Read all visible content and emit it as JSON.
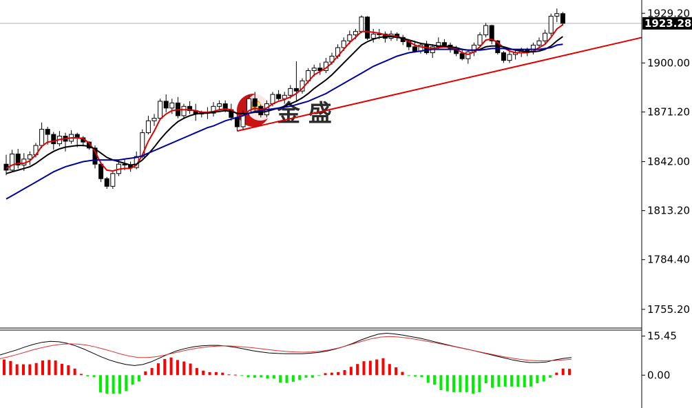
{
  "chart_data": [
    {
      "type": "candlestick",
      "y_ticks": [
        "1929.20",
        "1900.00",
        "1871.20",
        "1842.00",
        "1813.20",
        "1784.40",
        "1755.20"
      ],
      "y_tick_values": [
        1929.2,
        1900.0,
        1871.2,
        1842.0,
        1813.2,
        1784.4,
        1755.2
      ],
      "ylim": [
        1745,
        1937
      ],
      "current_price": "1923.28",
      "current_price_value": 1923.28,
      "candles": [
        [
          1840.5,
          1846.0,
          1834.0,
          1837.0
        ],
        [
          1837.0,
          1849.0,
          1836.0,
          1846.5
        ],
        [
          1846.5,
          1849.5,
          1838.0,
          1840.0
        ],
        [
          1840.0,
          1847.0,
          1836.5,
          1843.5
        ],
        [
          1843.5,
          1848.0,
          1840.0,
          1846.0
        ],
        [
          1846.0,
          1853.0,
          1844.5,
          1851.5
        ],
        [
          1851.5,
          1865.0,
          1850.0,
          1861.0
        ],
        [
          1861.0,
          1862.5,
          1852.0,
          1858.0
        ],
        [
          1858.0,
          1859.5,
          1849.0,
          1852.5
        ],
        [
          1852.5,
          1860.0,
          1851.0,
          1857.0
        ],
        [
          1857.0,
          1859.0,
          1848.0,
          1854.0
        ],
        [
          1854.0,
          1860.5,
          1852.5,
          1858.0
        ],
        [
          1858.0,
          1859.0,
          1850.5,
          1856.0
        ],
        [
          1856.0,
          1857.0,
          1851.0,
          1853.5
        ],
        [
          1853.5,
          1854.0,
          1849.0,
          1850.0
        ],
        [
          1850.0,
          1851.5,
          1838.0,
          1840.5
        ],
        [
          1840.5,
          1842.0,
          1830.0,
          1832.0
        ],
        [
          1832.0,
          1833.0,
          1826.0,
          1827.5
        ],
        [
          1827.5,
          1836.0,
          1826.0,
          1835.0
        ],
        [
          1835.0,
          1843.0,
          1833.5,
          1840.5
        ],
        [
          1840.5,
          1843.5,
          1837.0,
          1840.0
        ],
        [
          1840.0,
          1842.0,
          1836.0,
          1838.5
        ],
        [
          1838.5,
          1848.0,
          1837.5,
          1845.0
        ],
        [
          1845.0,
          1861.0,
          1844.0,
          1859.0
        ],
        [
          1859.0,
          1869.0,
          1858.0,
          1866.0
        ],
        [
          1866.0,
          1870.0,
          1863.0,
          1867.5
        ],
        [
          1867.5,
          1879.0,
          1866.5,
          1877.5
        ],
        [
          1877.5,
          1881.5,
          1871.0,
          1873.5
        ],
        [
          1873.5,
          1879.0,
          1870.0,
          1876.5
        ],
        [
          1876.5,
          1880.0,
          1867.5,
          1869.0
        ],
        [
          1869.0,
          1876.0,
          1867.0,
          1874.5
        ],
        [
          1874.5,
          1877.5,
          1870.0,
          1872.0
        ],
        [
          1872.0,
          1876.0,
          1866.0,
          1870.0
        ],
        [
          1870.0,
          1872.0,
          1868.0,
          1871.0
        ],
        [
          1871.0,
          1874.0,
          1867.0,
          1870.5
        ],
        [
          1870.5,
          1877.0,
          1868.5,
          1874.5
        ],
        [
          1874.5,
          1878.0,
          1872.0,
          1876.0
        ],
        [
          1876.0,
          1878.0,
          1871.0,
          1872.5
        ],
        [
          1872.5,
          1876.0,
          1866.0,
          1868.0
        ],
        [
          1868.0,
          1871.0,
          1860.0,
          1862.5
        ],
        [
          1862.5,
          1872.0,
          1861.0,
          1870.5
        ],
        [
          1870.5,
          1881.0,
          1869.0,
          1879.0
        ],
        [
          1879.0,
          1883.0,
          1872.0,
          1874.5
        ],
        [
          1874.5,
          1875.5,
          1868.0,
          1869.5
        ],
        [
          1869.5,
          1878.0,
          1868.0,
          1876.0
        ],
        [
          1876.0,
          1883.0,
          1874.5,
          1881.5
        ],
        [
          1881.5,
          1884.0,
          1878.0,
          1879.0
        ],
        [
          1879.0,
          1883.0,
          1876.0,
          1881.0
        ],
        [
          1881.0,
          1887.0,
          1879.0,
          1885.0
        ],
        [
          1885.0,
          1901.0,
          1878.0,
          1883.5
        ],
        [
          1883.5,
          1891.0,
          1882.0,
          1889.5
        ],
        [
          1889.5,
          1897.0,
          1888.0,
          1895.5
        ],
        [
          1895.5,
          1899.0,
          1892.0,
          1897.0
        ],
        [
          1897.0,
          1900.0,
          1893.0,
          1895.5
        ],
        [
          1895.5,
          1903.0,
          1894.0,
          1900.5
        ],
        [
          1900.5,
          1906.0,
          1899.0,
          1904.0
        ],
        [
          1904.0,
          1911.0,
          1902.5,
          1909.0
        ],
        [
          1909.0,
          1915.0,
          1907.0,
          1913.0
        ],
        [
          1913.0,
          1919.0,
          1911.0,
          1916.5
        ],
        [
          1916.5,
          1920.0,
          1914.0,
          1918.5
        ],
        [
          1918.5,
          1928.0,
          1917.5,
          1927.0
        ],
        [
          1927.0,
          1927.5,
          1913.5,
          1914.5
        ],
        [
          1914.5,
          1920.0,
          1912.0,
          1917.0
        ],
        [
          1917.0,
          1920.0,
          1914.0,
          1917.0
        ],
        [
          1917.0,
          1918.5,
          1912.0,
          1914.5
        ],
        [
          1914.5,
          1919.0,
          1913.0,
          1917.0
        ],
        [
          1917.0,
          1918.0,
          1913.0,
          1915.0
        ],
        [
          1915.0,
          1916.5,
          1910.5,
          1912.5
        ],
        [
          1912.5,
          1914.0,
          1907.5,
          1909.5
        ],
        [
          1909.5,
          1913.0,
          1906.0,
          1907.0
        ],
        [
          1907.0,
          1912.0,
          1905.5,
          1910.5
        ],
        [
          1910.5,
          1913.0,
          1905.0,
          1906.0
        ],
        [
          1906.0,
          1911.0,
          1903.0,
          1909.5
        ],
        [
          1909.5,
          1915.0,
          1908.0,
          1912.0
        ],
        [
          1912.0,
          1914.0,
          1909.0,
          1910.5
        ],
        [
          1910.5,
          1912.0,
          1906.0,
          1908.0
        ],
        [
          1908.0,
          1910.0,
          1904.0,
          1905.5
        ],
        [
          1905.5,
          1908.5,
          1901.5,
          1902.5
        ],
        [
          1902.5,
          1908.0,
          1899.5,
          1906.5
        ],
        [
          1906.5,
          1912.0,
          1904.0,
          1910.5
        ],
        [
          1910.5,
          1918.0,
          1909.0,
          1916.5
        ],
        [
          1916.5,
          1923.5,
          1915.0,
          1922.0
        ],
        [
          1922.0,
          1922.5,
          1911.0,
          1913.0
        ],
        [
          1913.0,
          1913.5,
          1905.0,
          1906.0
        ],
        [
          1906.0,
          1907.0,
          1900.0,
          1901.5
        ],
        [
          1901.5,
          1907.0,
          1900.0,
          1905.0
        ],
        [
          1905.0,
          1907.5,
          1902.0,
          1906.0
        ],
        [
          1906.0,
          1909.0,
          1903.5,
          1907.5
        ],
        [
          1907.5,
          1909.0,
          1904.0,
          1906.5
        ],
        [
          1906.5,
          1912.0,
          1905.0,
          1910.5
        ],
        [
          1910.5,
          1915.0,
          1909.0,
          1913.0
        ],
        [
          1913.0,
          1919.5,
          1911.0,
          1917.5
        ],
        [
          1917.5,
          1929.0,
          1916.0,
          1927.5
        ],
        [
          1927.5,
          1932.0,
          1924.0,
          1929.0
        ],
        [
          1929.0,
          1930.0,
          1922.0,
          1923.28
        ]
      ],
      "series": [
        {
          "color": "#e00000",
          "values": [
            1838.0,
            1840.0,
            1841.0,
            1841.0,
            1842.5,
            1846.0,
            1851.0,
            1853.5,
            1854.0,
            1855.0,
            1855.5,
            1856.0,
            1856.0,
            1855.5,
            1853.0,
            1848.0,
            1841.0,
            1837.0,
            1836.5,
            1837.5,
            1838.0,
            1838.0,
            1840.0,
            1846.0,
            1854.0,
            1860.0,
            1867.0,
            1870.0,
            1872.0,
            1872.5,
            1872.5,
            1872.5,
            1872.0,
            1871.0,
            1871.0,
            1871.5,
            1872.5,
            1873.0,
            1872.5,
            1870.0,
            1869.0,
            1872.0,
            1873.5,
            1872.5,
            1873.5,
            1876.0,
            1877.5,
            1878.5,
            1880.0,
            1882.0,
            1885.0,
            1889.0,
            1893.0,
            1895.0,
            1897.0,
            1900.0,
            1904.0,
            1908.0,
            1912.0,
            1915.0,
            1918.5,
            1918.5,
            1918.0,
            1917.5,
            1916.5,
            1916.0,
            1915.5,
            1914.5,
            1912.5,
            1910.5,
            1909.5,
            1909.0,
            1908.5,
            1909.0,
            1909.5,
            1909.0,
            1908.0,
            1906.0,
            1905.0,
            1906.5,
            1909.5,
            1913.5,
            1914.0,
            1912.0,
            1909.0,
            1907.0,
            1906.0,
            1906.0,
            1906.0,
            1907.0,
            1909.0,
            1911.0,
            1915.0,
            1920.0,
            1922.5
          ]
        },
        {
          "color": "#000000",
          "values": [
            1835.0,
            1836.0,
            1837.0,
            1838.0,
            1839.0,
            1841.0,
            1843.5,
            1846.0,
            1848.0,
            1849.5,
            1850.5,
            1851.0,
            1851.5,
            1851.5,
            1851.0,
            1849.5,
            1847.0,
            1844.5,
            1843.0,
            1842.0,
            1841.0,
            1840.0,
            1840.5,
            1843.0,
            1846.5,
            1850.5,
            1855.0,
            1859.0,
            1862.5,
            1865.5,
            1867.5,
            1869.0,
            1870.0,
            1870.5,
            1870.5,
            1871.0,
            1871.5,
            1872.0,
            1871.5,
            1870.5,
            1870.0,
            1870.5,
            1871.0,
            1871.0,
            1871.5,
            1872.5,
            1873.5,
            1874.5,
            1876.0,
            1877.5,
            1879.5,
            1882.0,
            1885.0,
            1887.5,
            1890.0,
            1893.0,
            1896.5,
            1900.0,
            1903.5,
            1907.0,
            1910.5,
            1912.5,
            1914.0,
            1915.0,
            1915.5,
            1915.5,
            1915.0,
            1914.5,
            1913.5,
            1912.5,
            1911.5,
            1911.0,
            1910.5,
            1910.0,
            1910.0,
            1909.5,
            1909.0,
            1908.0,
            1907.5,
            1907.5,
            1908.0,
            1909.5,
            1910.0,
            1910.0,
            1909.5,
            1908.5,
            1907.5,
            1907.0,
            1906.5,
            1906.5,
            1907.0,
            1908.0,
            1910.0,
            1913.0,
            1915.5
          ]
        },
        {
          "color": "#0000a0",
          "values": [
            1820.0,
            1822.0,
            1824.0,
            1826.0,
            1828.0,
            1830.0,
            1832.0,
            1834.0,
            1836.0,
            1837.5,
            1839.0,
            1840.0,
            1841.0,
            1842.0,
            1842.5,
            1843.0,
            1843.0,
            1843.0,
            1843.0,
            1843.0,
            1843.5,
            1844.0,
            1844.5,
            1845.5,
            1847.0,
            1848.5,
            1850.0,
            1851.5,
            1853.0,
            1854.5,
            1856.0,
            1857.5,
            1859.0,
            1860.5,
            1862.0,
            1863.0,
            1864.5,
            1866.0,
            1867.0,
            1868.0,
            1869.0,
            1870.5,
            1871.5,
            1872.0,
            1872.5,
            1873.0,
            1873.5,
            1874.0,
            1874.5,
            1875.5,
            1876.5,
            1877.5,
            1879.0,
            1880.5,
            1882.0,
            1884.0,
            1886.0,
            1888.0,
            1890.0,
            1892.0,
            1894.0,
            1896.0,
            1898.0,
            1899.5,
            1901.0,
            1902.5,
            1904.0,
            1905.0,
            1906.0,
            1906.5,
            1907.0,
            1907.5,
            1908.0,
            1908.0,
            1908.0,
            1908.0,
            1908.0,
            1908.0,
            1907.5,
            1907.5,
            1907.5,
            1908.0,
            1908.5,
            1908.5,
            1908.5,
            1908.0,
            1908.0,
            1908.0,
            1908.0,
            1908.0,
            1908.0,
            1908.5,
            1909.0,
            1910.5,
            1911.0
          ]
        }
      ],
      "trendline": {
        "color": "#e00000",
        "from": [
          39,
          1860.0
        ],
        "to": [
          108,
          1915.5
        ]
      },
      "watermark": "金 盛"
    },
    {
      "type": "histogram+lines",
      "y_ticks": [
        "15.45",
        "0.00"
      ],
      "y_tick_values": [
        15.45,
        0.0
      ],
      "ylim": [
        -13.0,
        17.0
      ],
      "histogram": [
        6.2,
        5.6,
        4.3,
        4.3,
        4.3,
        4.8,
        5.8,
        6.0,
        5.8,
        4.5,
        3.9,
        2.6,
        0.5,
        -0.5,
        -0.8,
        -6.8,
        -7.3,
        -7.3,
        -7.3,
        -6.3,
        -3.8,
        -2.5,
        1.5,
        2.8,
        4.7,
        6.4,
        7.0,
        6.0,
        5.4,
        4.6,
        2.8,
        1.8,
        1.2,
        1.2,
        1.0,
        0.3,
        0.2,
        -0.3,
        -0.9,
        -1.0,
        -0.9,
        -1.3,
        -1.3,
        -3.0,
        -3.1,
        -2.6,
        -1.9,
        -1.0,
        -1.0,
        -0.2,
        0.8,
        1.0,
        1.2,
        2.0,
        3.3,
        4.4,
        5.5,
        5.7,
        6.2,
        6.7,
        4.4,
        3.1,
        1.3,
        -0.3,
        -0.6,
        -0.8,
        -3.0,
        -3.8,
        -5.9,
        -6.4,
        -6.7,
        -6.7,
        -6.7,
        -7.3,
        -6.7,
        -3.2,
        -5.0,
        -4.6,
        -4.5,
        -4.5,
        -4.6,
        -4.8,
        -4.5,
        -3.2,
        -2.5,
        -1.0,
        1.0,
        2.6,
        2.5
      ],
      "series": [
        {
          "color": "#000000",
          "values": [
            8.0,
            9.0,
            10.0,
            11.2,
            12.2,
            13.0,
            13.4,
            13.2,
            12.6,
            11.6,
            10.3,
            8.8,
            7.3,
            6.0,
            5.0,
            4.2,
            3.8,
            4.2,
            5.3,
            6.8,
            8.3,
            9.6,
            10.5,
            11.2,
            11.6,
            11.8,
            11.8,
            11.5,
            11.0,
            10.4,
            9.7,
            9.2,
            8.8,
            8.6,
            8.5,
            8.5,
            8.5,
            8.7,
            9.0,
            9.6,
            10.4,
            11.4,
            12.6,
            14.0,
            15.2,
            16.2,
            16.6,
            16.3,
            15.8,
            15.2,
            14.6,
            13.8,
            13.0,
            12.2,
            11.4,
            10.7,
            10.0,
            9.2,
            8.4,
            7.6,
            6.8,
            6.0,
            5.4,
            5.0,
            5.0,
            5.2,
            6.0,
            6.6,
            7.0
          ]
        },
        {
          "color": "#e03030",
          "values": [
            6.5,
            7.3,
            8.2,
            9.2,
            10.2,
            11.0,
            11.7,
            12.2,
            12.4,
            12.3,
            11.9,
            11.2,
            10.3,
            9.3,
            8.3,
            7.5,
            7.0,
            7.0,
            7.3,
            7.9,
            8.7,
            9.5,
            10.2,
            10.8,
            11.2,
            11.5,
            11.6,
            11.5,
            11.2,
            10.9,
            10.5,
            10.1,
            9.7,
            9.4,
            9.2,
            9.1,
            9.2,
            9.5,
            10.0,
            10.7,
            11.6,
            12.6,
            13.6,
            14.5,
            15.1,
            15.3,
            15.1,
            14.7,
            14.2,
            13.6,
            13.0,
            12.3,
            11.6,
            10.9,
            10.2,
            9.5,
            8.8,
            8.1,
            7.4,
            6.8,
            6.3,
            5.9,
            5.7,
            5.7,
            5.8,
            6.0,
            6.3
          ]
        }
      ]
    }
  ]
}
